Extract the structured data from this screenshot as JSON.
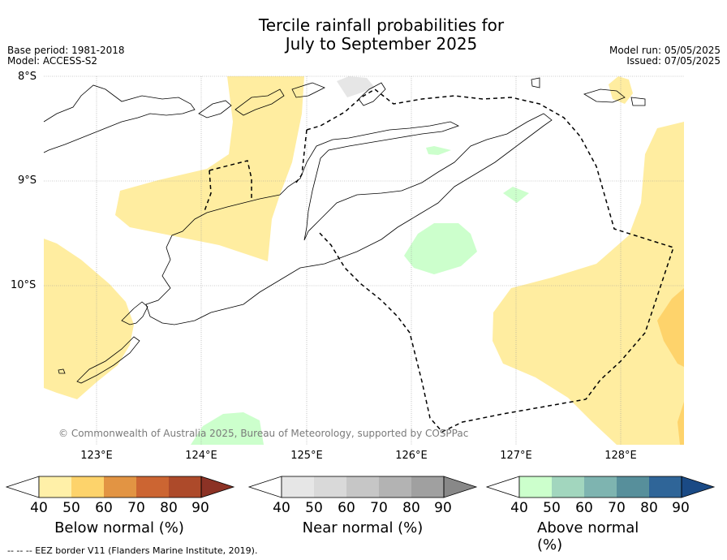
{
  "title_line1": "Tercile rainfall probabilities for",
  "title_line2": "July to September 2025",
  "base_period": "Base period: 1981-2018",
  "model": "Model: ACCESS-S2",
  "model_run": "Model run: 05/05/2025",
  "issued": "Issued: 07/05/2025",
  "latitude_labels": [
    "8°S",
    "9°S",
    "10°S"
  ],
  "longitude_labels": [
    "123°E",
    "124°E",
    "125°E",
    "126°E",
    "127°E",
    "128°E"
  ],
  "copyright": "© Commonwealth of Australia 2025, Bureau of Meteorology, supported by COSPPac",
  "footer": "-- -- -- EEZ border V11 (Flanders Marine Institute, 2019).",
  "colorbars": [
    {
      "title": "Below normal (%)",
      "ticks": [
        "40",
        "50",
        "60",
        "70",
        "80",
        "90"
      ],
      "colors": [
        "#fff0a8",
        "#fdd36b",
        "#e29443",
        "#cc6532",
        "#ad4a2a",
        "#8c3225"
      ]
    },
    {
      "title": "Near normal (%)",
      "ticks": [
        "40",
        "50",
        "60",
        "70",
        "80",
        "90"
      ],
      "colors": [
        "#e6e6e6",
        "#d9d9d9",
        "#c6c6c6",
        "#b3b3b3",
        "#a0a0a0",
        "#888888"
      ]
    },
    {
      "title": "Above normal (%)",
      "ticks": [
        "40",
        "50",
        "60",
        "70",
        "80",
        "90"
      ],
      "colors": [
        "#ccffcc",
        "#a2d6be",
        "#7eb4b0",
        "#578f9b",
        "#2f6598",
        "#1a4a85"
      ]
    }
  ],
  "legend_colors": {
    "below_40_50": "#ffeda0",
    "below_50_60": "#fed36b",
    "near_40_50": "#e6e6e6",
    "above_40_50": "#ccffcc"
  }
}
